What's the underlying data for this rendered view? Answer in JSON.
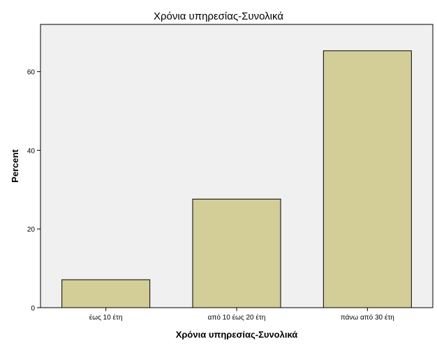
{
  "chart_data": {
    "type": "bar",
    "title": "Χρόνια υπηρεσίας-Συνολικά",
    "xlabel": "Χρόνια υπηρεσίας-Συνολικά",
    "ylabel": "Percent",
    "categories": [
      "έως 10 έτη",
      "από 10 έως 20 έτη",
      "πάνω από 30 έτη"
    ],
    "values": [
      7.1,
      27.6,
      65.3
    ],
    "ylim": [
      0,
      72
    ],
    "yticks": [
      0,
      20,
      40,
      60
    ],
    "grid": false,
    "colors": {
      "bar_fill": "#d3ce98",
      "bar_stroke": "#000000",
      "plot_background": "#f0f0f0",
      "axis": "#000000"
    }
  }
}
